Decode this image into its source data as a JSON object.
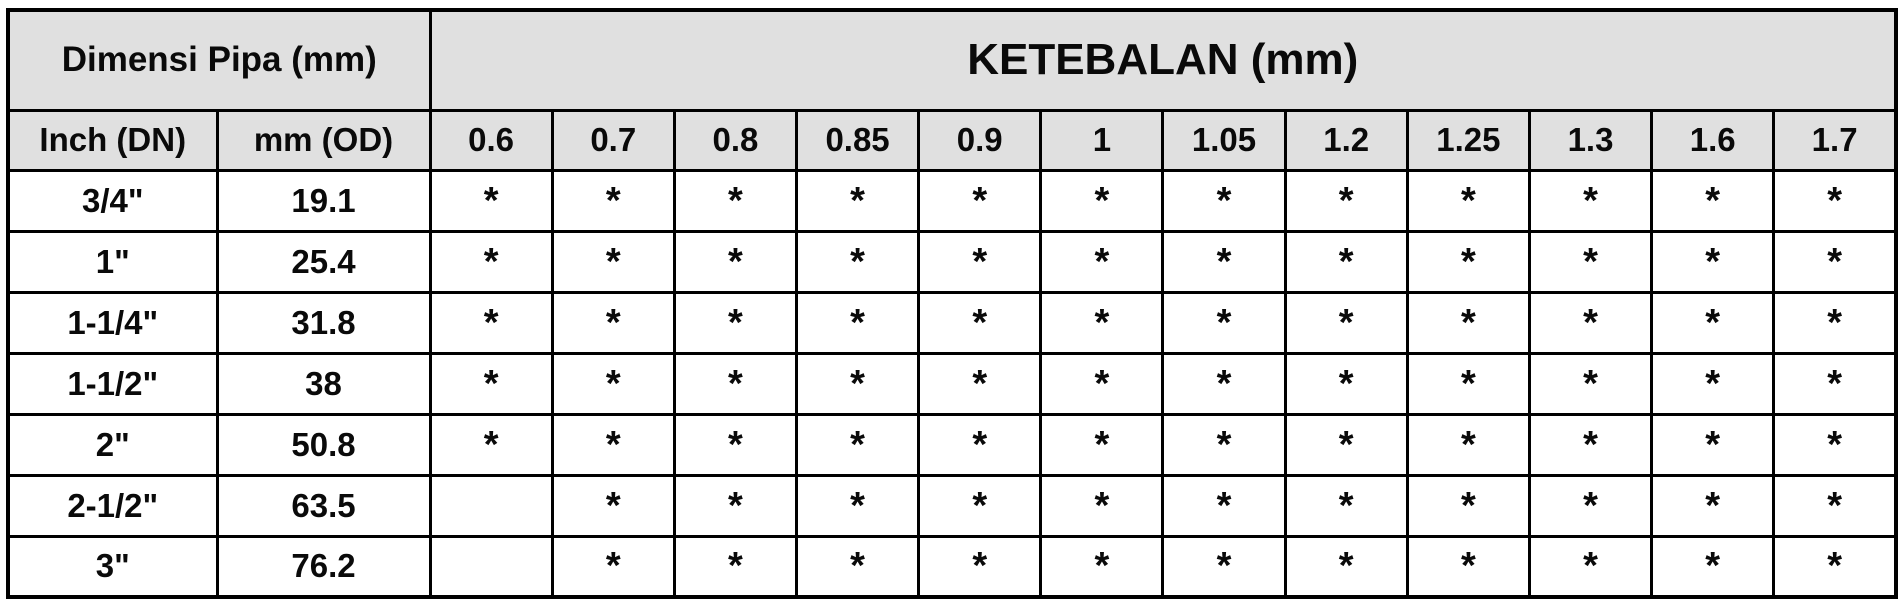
{
  "colors": {
    "border": "#000000",
    "text": "#0a0a0a",
    "header_bg": "#e0e0e0",
    "cell_bg": "#ffffff"
  },
  "table": {
    "dimensi_label": "Dimensi Pipa (mm)",
    "ketebalan_label": "KETEBALAN (mm)",
    "inch_label": "Inch (DN)",
    "od_label": "mm (OD)",
    "thicknesses": [
      "0.6",
      "0.7",
      "0.8",
      "0.85",
      "0.9",
      "1",
      "1.05",
      "1.2",
      "1.25",
      "1.3",
      "1.6",
      "1.7"
    ],
    "available_marker": "*",
    "rows": [
      {
        "inch": "3/4\"",
        "od": "19.1",
        "cells": [
          "*",
          "*",
          "*",
          "*",
          "*",
          "*",
          "*",
          "*",
          "*",
          "*",
          "*",
          "*"
        ]
      },
      {
        "inch": "1\"",
        "od": "25.4",
        "cells": [
          "*",
          "*",
          "*",
          "*",
          "*",
          "*",
          "*",
          "*",
          "*",
          "*",
          "*",
          "*"
        ]
      },
      {
        "inch": "1-1/4\"",
        "od": "31.8",
        "cells": [
          "*",
          "*",
          "*",
          "*",
          "*",
          "*",
          "*",
          "*",
          "*",
          "*",
          "*",
          "*"
        ]
      },
      {
        "inch": "1-1/2\"",
        "od": "38",
        "cells": [
          "*",
          "*",
          "*",
          "*",
          "*",
          "*",
          "*",
          "*",
          "*",
          "*",
          "*",
          "*"
        ]
      },
      {
        "inch": "2\"",
        "od": "50.8",
        "cells": [
          "*",
          "*",
          "*",
          "*",
          "*",
          "*",
          "*",
          "*",
          "*",
          "*",
          "*",
          "*"
        ]
      },
      {
        "inch": "2-1/2\"",
        "od": "63.5",
        "cells": [
          "",
          "*",
          "*",
          "*",
          "*",
          "*",
          "*",
          "*",
          "*",
          "*",
          "*",
          "*"
        ]
      },
      {
        "inch": "3\"",
        "od": "76.2",
        "cells": [
          "",
          "*",
          "*",
          "*",
          "*",
          "*",
          "*",
          "*",
          "*",
          "*",
          "*",
          "*"
        ]
      }
    ]
  }
}
